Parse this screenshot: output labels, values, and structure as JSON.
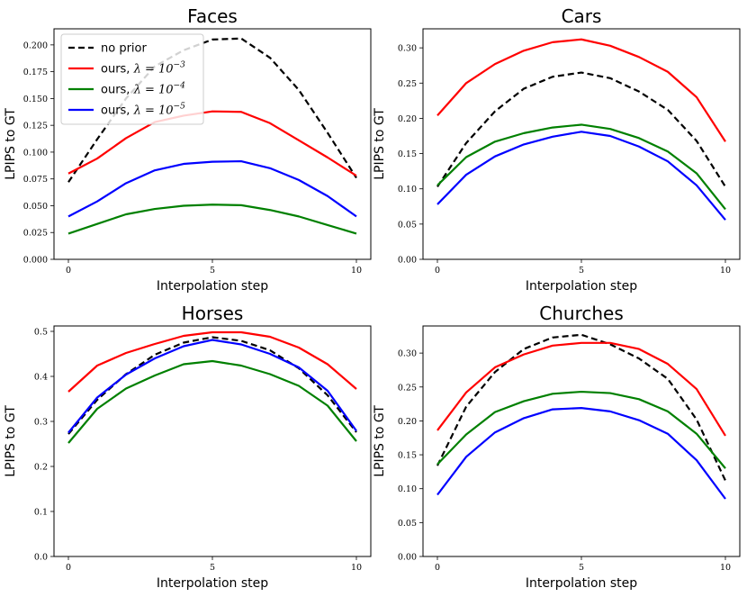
{
  "chart_data": [
    {
      "type": "line",
      "title": "Faces",
      "xlabel": "Interpolation step",
      "ylabel": "LPIPS to GT",
      "x": [
        0,
        1,
        2,
        3,
        4,
        5,
        6,
        7,
        8,
        9,
        10
      ],
      "xlim": [
        -0.5,
        10.5
      ],
      "ylim": [
        0,
        0.215
      ],
      "xticks": [
        0,
        5,
        10
      ],
      "xtick_labels": [
        "0",
        "5",
        "10"
      ],
      "yticks": [
        0,
        0.025,
        0.05,
        0.075,
        0.1,
        0.125,
        0.15,
        0.175,
        0.2
      ],
      "ytick_labels": [
        "0.000",
        "0.025",
        "0.050",
        "0.075",
        "0.100",
        "0.125",
        "0.150",
        "0.175",
        "0.200"
      ],
      "legend": true,
      "legend_position": "top-left",
      "series": [
        {
          "name": "no prior",
          "color": "#000000",
          "dashed": true,
          "values": [
            0.072,
            0.112,
            0.15,
            0.18,
            0.195,
            0.205,
            0.206,
            0.188,
            0.158,
            0.118,
            0.076
          ]
        },
        {
          "name": "ours, λ = 10^-3",
          "color": "#ff0000",
          "dashed": false,
          "values": [
            0.08,
            0.094,
            0.113,
            0.128,
            0.134,
            0.138,
            0.1375,
            0.127,
            0.111,
            0.095,
            0.078
          ]
        },
        {
          "name": "ours, λ = 10^-4",
          "color": "#008000",
          "dashed": false,
          "values": [
            0.024,
            0.033,
            0.042,
            0.047,
            0.05,
            0.051,
            0.0505,
            0.046,
            0.04,
            0.032,
            0.024
          ]
        },
        {
          "name": "ours, λ = 10^-5",
          "color": "#0000ff",
          "dashed": false,
          "values": [
            0.04,
            0.054,
            0.071,
            0.083,
            0.089,
            0.091,
            0.0915,
            0.085,
            0.074,
            0.059,
            0.04
          ]
        }
      ]
    },
    {
      "type": "line",
      "title": "Cars",
      "xlabel": "Interpolation step",
      "ylabel": "LPIPS to GT",
      "x": [
        0,
        1,
        2,
        3,
        4,
        5,
        6,
        7,
        8,
        9,
        10
      ],
      "xlim": [
        -0.5,
        10.5
      ],
      "ylim": [
        0,
        0.327
      ],
      "xticks": [
        0,
        5,
        10
      ],
      "xtick_labels": [
        "0",
        "5",
        "10"
      ],
      "yticks": [
        0,
        0.05,
        0.1,
        0.15,
        0.2,
        0.25,
        0.3
      ],
      "ytick_labels": [
        "0.00",
        "0.05",
        "0.10",
        "0.15",
        "0.20",
        "0.25",
        "0.30"
      ],
      "legend": false,
      "series": [
        {
          "name": "no prior",
          "color": "#000000",
          "dashed": true,
          "values": [
            0.103,
            0.165,
            0.21,
            0.242,
            0.259,
            0.265,
            0.257,
            0.238,
            0.212,
            0.168,
            0.103
          ]
        },
        {
          "name": "ours, λ = 10^-3",
          "color": "#ff0000",
          "dashed": false,
          "values": [
            0.204,
            0.25,
            0.277,
            0.296,
            0.308,
            0.312,
            0.303,
            0.287,
            0.266,
            0.23,
            0.167
          ]
        },
        {
          "name": "ours, λ = 10^-4",
          "color": "#008000",
          "dashed": false,
          "values": [
            0.105,
            0.145,
            0.167,
            0.179,
            0.187,
            0.191,
            0.185,
            0.172,
            0.153,
            0.122,
            0.071
          ]
        },
        {
          "name": "ours, λ = 10^-5",
          "color": "#0000ff",
          "dashed": false,
          "values": [
            0.078,
            0.12,
            0.146,
            0.163,
            0.174,
            0.181,
            0.175,
            0.16,
            0.139,
            0.105,
            0.056
          ]
        }
      ]
    },
    {
      "type": "line",
      "title": "Horses",
      "xlabel": "Interpolation step",
      "ylabel": "LPIPS to GT",
      "x": [
        0,
        1,
        2,
        3,
        4,
        5,
        6,
        7,
        8,
        9,
        10
      ],
      "xlim": [
        -0.5,
        10.5
      ],
      "ylim": [
        0,
        0.512
      ],
      "xticks": [
        0,
        5,
        10
      ],
      "xtick_labels": [
        "0",
        "5",
        "10"
      ],
      "yticks": [
        0,
        0.1,
        0.2,
        0.3,
        0.4,
        0.5
      ],
      "ytick_labels": [
        "0.0",
        "0.1",
        "0.2",
        "0.3",
        "0.4",
        "0.5"
      ],
      "legend": false,
      "series": [
        {
          "name": "no prior",
          "color": "#000000",
          "dashed": true,
          "values": [
            0.272,
            0.348,
            0.405,
            0.448,
            0.475,
            0.487,
            0.479,
            0.458,
            0.418,
            0.358,
            0.276
          ]
        },
        {
          "name": "ours, λ = 10^-3",
          "color": "#ff0000",
          "dashed": false,
          "values": [
            0.366,
            0.424,
            0.452,
            0.472,
            0.49,
            0.498,
            0.498,
            0.488,
            0.464,
            0.427,
            0.372
          ]
        },
        {
          "name": "ours, λ = 10^-4",
          "color": "#008000",
          "dashed": false,
          "values": [
            0.252,
            0.328,
            0.373,
            0.402,
            0.427,
            0.434,
            0.424,
            0.405,
            0.379,
            0.335,
            0.256
          ]
        },
        {
          "name": "ours, λ = 10^-5",
          "color": "#0000ff",
          "dashed": false,
          "values": [
            0.275,
            0.353,
            0.404,
            0.44,
            0.467,
            0.481,
            0.471,
            0.45,
            0.42,
            0.368,
            0.279
          ]
        }
      ]
    },
    {
      "type": "line",
      "title": "Churches",
      "xlabel": "Interpolation step",
      "ylabel": "LPIPS to GT",
      "x": [
        0,
        1,
        2,
        3,
        4,
        5,
        6,
        7,
        8,
        9,
        10
      ],
      "xlim": [
        -0.5,
        10.5
      ],
      "ylim": [
        0,
        0.34
      ],
      "xticks": [
        0,
        5,
        10
      ],
      "xtick_labels": [
        "0",
        "5",
        "10"
      ],
      "yticks": [
        0,
        0.05,
        0.1,
        0.15,
        0.2,
        0.25,
        0.3
      ],
      "ytick_labels": [
        "0.00",
        "0.05",
        "0.10",
        "0.15",
        "0.20",
        "0.25",
        "0.30"
      ],
      "legend": false,
      "series": [
        {
          "name": "no prior",
          "color": "#000000",
          "dashed": true,
          "values": [
            0.134,
            0.221,
            0.272,
            0.306,
            0.323,
            0.327,
            0.313,
            0.292,
            0.262,
            0.202,
            0.112
          ]
        },
        {
          "name": "ours, λ = 10^-3",
          "color": "#ff0000",
          "dashed": false,
          "values": [
            0.186,
            0.242,
            0.279,
            0.298,
            0.311,
            0.315,
            0.315,
            0.306,
            0.284,
            0.247,
            0.178
          ]
        },
        {
          "name": "ours, λ = 10^-4",
          "color": "#008000",
          "dashed": false,
          "values": [
            0.136,
            0.18,
            0.213,
            0.229,
            0.24,
            0.243,
            0.241,
            0.232,
            0.214,
            0.181,
            0.13
          ]
        },
        {
          "name": "ours, λ = 10^-5",
          "color": "#0000ff",
          "dashed": false,
          "values": [
            0.091,
            0.147,
            0.183,
            0.204,
            0.217,
            0.219,
            0.214,
            0.201,
            0.181,
            0.142,
            0.085
          ]
        }
      ]
    }
  ]
}
